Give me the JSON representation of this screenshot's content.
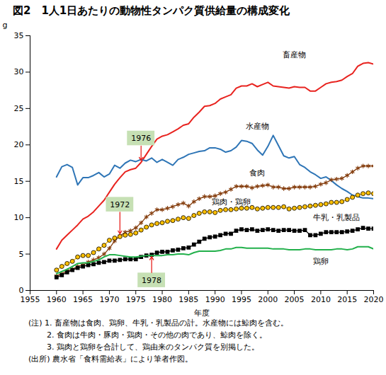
{
  "chart_data": {
    "type": "line",
    "title": "図2　1人1日あたりの動物性タンパク質供給量の構成変化",
    "y_label": "g",
    "x_label": "年度",
    "xlim": [
      1955,
      2020
    ],
    "xticks": [
      1955,
      1960,
      1965,
      1970,
      1975,
      1980,
      1985,
      1990,
      1995,
      2000,
      2005,
      2010,
      2015,
      2020
    ],
    "ylim": [
      0,
      35
    ],
    "yticks": [
      0,
      5,
      10,
      15,
      20,
      25,
      30,
      35
    ],
    "grid": false,
    "x": [
      1960,
      1961,
      1962,
      1963,
      1964,
      1965,
      1966,
      1967,
      1968,
      1969,
      1970,
      1971,
      1972,
      1973,
      1974,
      1975,
      1976,
      1977,
      1978,
      1979,
      1980,
      1981,
      1982,
      1983,
      1984,
      1985,
      1986,
      1987,
      1988,
      1989,
      1990,
      1991,
      1992,
      1993,
      1994,
      1995,
      1996,
      1997,
      1998,
      1999,
      2000,
      2001,
      2002,
      2003,
      2004,
      2005,
      2006,
      2007,
      2008,
      2009,
      2010,
      2011,
      2012,
      2013,
      2014,
      2015,
      2016,
      2017,
      2018,
      2019,
      2020
    ],
    "series": [
      {
        "name": "畜産物",
        "color": "#e8231f",
        "marker": "none",
        "values": [
          5.7,
          6.9,
          7.6,
          8.3,
          9.0,
          9.8,
          10.2,
          10.8,
          11.6,
          12.4,
          13.5,
          14.6,
          15.5,
          16.3,
          16.6,
          16.8,
          17.6,
          18.7,
          19.8,
          20.8,
          21.2,
          21.4,
          21.8,
          22.2,
          22.7,
          22.9,
          23.8,
          24.5,
          25.3,
          25.4,
          25.7,
          26.3,
          26.6,
          26.9,
          27.8,
          28.1,
          28.1,
          28.4,
          28.0,
          28.3,
          28.6,
          28.1,
          28.0,
          27.9,
          27.8,
          28.0,
          27.9,
          27.9,
          27.4,
          27.4,
          27.9,
          28.4,
          28.6,
          28.7,
          28.9,
          29.4,
          29.8,
          30.8,
          31.2,
          31.3,
          31.1
        ]
      },
      {
        "name": "水産物",
        "color": "#2e75b6",
        "marker": "none",
        "values": [
          15.6,
          17.0,
          17.3,
          16.9,
          14.5,
          15.5,
          15.5,
          15.8,
          16.2,
          15.6,
          16.0,
          17.2,
          16.8,
          17.5,
          17.9,
          17.7,
          18.0,
          17.8,
          18.2,
          17.6,
          18.0,
          17.6,
          17.2,
          18.0,
          18.3,
          18.7,
          18.9,
          19.1,
          19.2,
          19.6,
          19.6,
          19.4,
          19.0,
          19.2,
          19.7,
          20.6,
          20.5,
          20.2,
          19.3,
          18.6,
          19.8,
          21.3,
          19.9,
          18.5,
          18.2,
          18.4,
          17.3,
          16.9,
          16.3,
          15.9,
          15.4,
          15.6,
          15.1,
          14.5,
          14.0,
          13.6,
          13.1,
          12.9,
          12.7,
          12.7,
          12.6
        ]
      },
      {
        "name": "食肉",
        "color": "#843c0c",
        "marker": "asterisk",
        "values": [
          2.0,
          2.3,
          2.7,
          2.9,
          3.3,
          3.5,
          3.9,
          4.2,
          4.5,
          5.0,
          5.8,
          6.8,
          7.5,
          8.0,
          8.2,
          8.6,
          9.3,
          10.1,
          10.6,
          11.1,
          11.1,
          11.3,
          11.5,
          11.8,
          12.0,
          11.6,
          12.2,
          12.6,
          12.9,
          12.9,
          13.0,
          13.3,
          13.5,
          13.9,
          14.3,
          14.3,
          14.3,
          14.1,
          14.3,
          14.4,
          14.5,
          14.2,
          14.2,
          14.0,
          14.0,
          14.2,
          14.2,
          14.2,
          14.2,
          14.3,
          14.6,
          14.8,
          15.2,
          15.3,
          15.4,
          15.8,
          16.3,
          16.8,
          17.1,
          17.1,
          17.1
        ]
      },
      {
        "name": "鶏肉・鶏卵",
        "color": "#ffc000",
        "marker": "circle",
        "values": [
          2.8,
          3.3,
          3.7,
          4.0,
          4.6,
          4.8,
          4.8,
          5.2,
          5.7,
          6.2,
          6.9,
          7.2,
          7.4,
          7.6,
          7.7,
          7.9,
          8.3,
          8.7,
          9.0,
          9.2,
          9.3,
          9.5,
          9.6,
          9.8,
          10.0,
          9.9,
          10.3,
          10.6,
          10.8,
          10.8,
          10.7,
          11.0,
          11.1,
          11.1,
          11.2,
          11.3,
          11.3,
          11.4,
          11.2,
          11.3,
          11.4,
          11.4,
          11.4,
          11.5,
          11.2,
          11.3,
          11.4,
          11.5,
          11.6,
          11.7,
          11.8,
          11.9,
          12.1,
          12.1,
          12.2,
          12.5,
          12.8,
          13.1,
          13.3,
          13.4,
          13.3
        ]
      },
      {
        "name": "牛乳・乳製品",
        "color": "#000000",
        "marker": "square",
        "values": [
          1.8,
          2.1,
          2.5,
          2.8,
          3.1,
          3.3,
          3.5,
          3.6,
          3.8,
          3.9,
          4.1,
          4.1,
          4.2,
          4.3,
          4.3,
          4.3,
          4.6,
          4.8,
          4.9,
          5.2,
          5.3,
          5.3,
          5.5,
          5.6,
          5.8,
          5.9,
          6.3,
          6.7,
          7.1,
          7.3,
          7.4,
          7.6,
          7.8,
          7.8,
          8.2,
          8.4,
          8.3,
          8.4,
          8.2,
          8.3,
          8.4,
          8.3,
          8.2,
          8.3,
          8.3,
          8.2,
          8.2,
          8.3,
          7.6,
          7.6,
          7.8,
          8.0,
          8.0,
          8.0,
          8.0,
          8.1,
          8.2,
          8.4,
          8.6,
          8.5,
          8.5
        ]
      },
      {
        "name": "鶏卵",
        "color": "#22b04b",
        "marker": "none",
        "values": [
          2.3,
          2.6,
          2.9,
          3.3,
          3.7,
          3.8,
          3.8,
          4.0,
          4.2,
          4.6,
          4.9,
          4.9,
          4.8,
          4.7,
          4.6,
          4.6,
          4.7,
          4.8,
          4.8,
          4.8,
          4.8,
          4.9,
          4.9,
          5.0,
          5.0,
          4.9,
          5.2,
          5.4,
          5.4,
          5.4,
          5.4,
          5.5,
          5.7,
          5.7,
          5.9,
          5.9,
          5.8,
          5.8,
          5.8,
          5.8,
          5.8,
          5.7,
          5.7,
          5.7,
          5.6,
          5.6,
          5.6,
          5.7,
          5.7,
          5.6,
          5.6,
          5.6,
          5.6,
          5.7,
          5.7,
          5.6,
          5.7,
          6.0,
          6.0,
          6.0,
          5.7
        ]
      }
    ],
    "annotations": [
      {
        "label": "1976",
        "x": 1976,
        "series": "畜産物"
      },
      {
        "label": "1972",
        "x": 1972,
        "series": "食肉"
      },
      {
        "label": "1978",
        "x": 1978,
        "series": "牛乳・乳製品"
      }
    ],
    "notes": [
      "(注) 1. 畜産物は食肉、鶏卵、牛乳・乳製品の計。水産物には鯨肉を含む。",
      "2. 食肉は牛肉・豚肉・鶏肉・その他の肉であり、鯨肉を除く。",
      "3. 鶏肉と鶏卵を合計して、鶏由来のタンパク質を別掲した。",
      "(出所) 農水省「食料需給表」により筆者作図。"
    ]
  }
}
